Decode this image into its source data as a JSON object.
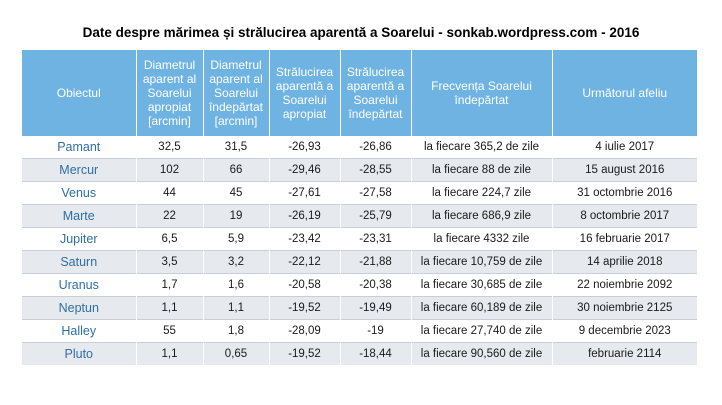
{
  "title": "Date despre mărimea și strălucirea aparentă a Soarelui - sonkab.wordpress.com - 2016",
  "headers": [
    "Obiectul",
    "Diametrul aparent al Soarelui apropiat [arcmin]",
    "Diametrul aparent al Soarelui îndepărtat [arcmin]",
    "Strălucirea aparentă a Soarelui apropiat",
    "Strălucirea aparentă a Soarelui îndepărtat",
    "Frecvența Soarelui îndepărtat",
    "Următorul afeliu"
  ],
  "rows": [
    [
      "Pamant",
      "32,5",
      "31,5",
      "-26,93",
      "-26,86",
      "la fiecare 365,2 de zile",
      "4 iulie 2017"
    ],
    [
      "Mercur",
      "102",
      "66",
      "-29,46",
      "-28,55",
      "la fiecare 88 de zile",
      "15 august 2016"
    ],
    [
      "Venus",
      "44",
      "45",
      "-27,61",
      "-27,58",
      "la fiecare 224,7 zile",
      "31 octombrie 2016"
    ],
    [
      "Marte",
      "22",
      "19",
      "-26,19",
      "-25,79",
      "la fiecare 686,9 zile",
      "8 octombrie 2017"
    ],
    [
      "Jupiter",
      "6,5",
      "5,9",
      "-23,42",
      "-23,31",
      "la fiecare 4332 zile",
      "16 februarie 2017"
    ],
    [
      "Saturn",
      "3,5",
      "3,2",
      "-22,12",
      "-21,88",
      "la fiecare 10,759 de zile",
      "14 aprilie 2018"
    ],
    [
      "Uranus",
      "1,7",
      "1,6",
      "-20,58",
      "-20,38",
      "la fiecare 30,685 de zile",
      "22 noiembrie 2092"
    ],
    [
      "Neptun",
      "1,1",
      "1,1",
      "-19,52",
      "-19,49",
      "la fiecare 60,189 de zile",
      "30 noiembrie 2125"
    ],
    [
      "Halley",
      "55",
      "1,8",
      "-28,09",
      "-19",
      "la fiecare 27,740 de zile",
      "9 decembrie 2023"
    ],
    [
      "Pluto",
      "1,1",
      "0,65",
      "-19,52",
      "-18,44",
      "la fiecare 90,560 de zile",
      "februarie 2114"
    ]
  ]
}
